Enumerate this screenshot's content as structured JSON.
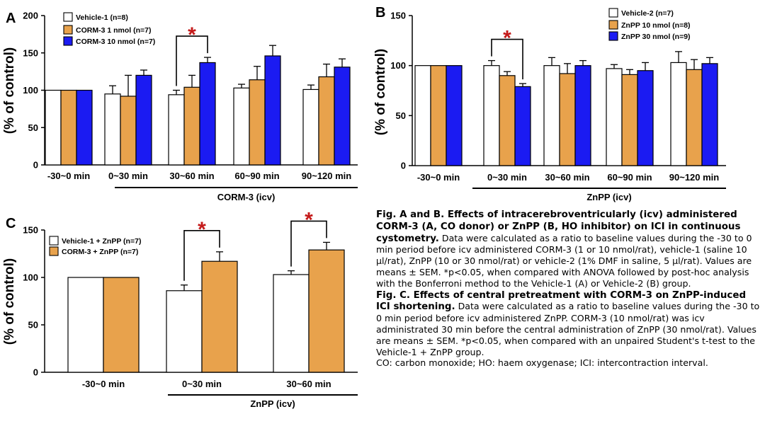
{
  "chart_data": [
    {
      "panel": "A",
      "type": "bar",
      "categories": [
        "-30~0 min",
        "0~30 min",
        "30~60 min",
        "60~90 min",
        "90~120 min"
      ],
      "group_label": "CORM-3 (icv)",
      "grouped_categories": [
        1,
        2,
        3,
        4
      ],
      "ylabel": "(% of control)",
      "ylim": [
        0,
        200
      ],
      "yticks": [
        0,
        50,
        100,
        150,
        200
      ],
      "series": [
        {
          "name": "Vehicle-1 (n=8)",
          "color": "#ffffff",
          "values": [
            100,
            95,
            94,
            103,
            101
          ],
          "errors": [
            0,
            11,
            6,
            5,
            6
          ]
        },
        {
          "name": "CORM-3 1 nmol (n=7)",
          "color": "#e8a24c",
          "values": [
            100,
            92,
            104,
            114,
            118
          ],
          "errors": [
            0,
            28,
            16,
            18,
            17
          ]
        },
        {
          "name": "CORM-3 10 nmol (n=7)",
          "color": "#1b1bf2",
          "values": [
            100,
            120,
            137,
            146,
            131
          ],
          "errors": [
            0,
            7,
            7,
            14,
            11
          ]
        }
      ],
      "significance": [
        {
          "category": 2,
          "from_series": 0,
          "to_series": 2,
          "label": "*"
        }
      ],
      "legend_position": "top"
    },
    {
      "panel": "B",
      "type": "bar",
      "categories": [
        "-30~0 min",
        "0~30 min",
        "30~60 min",
        "60~90 min",
        "90~120 min"
      ],
      "group_label": "ZnPP (icv)",
      "grouped_categories": [
        1,
        2,
        3,
        4
      ],
      "ylabel": "(% of control)",
      "ylim": [
        0,
        150
      ],
      "yticks": [
        0,
        50,
        100,
        150
      ],
      "series": [
        {
          "name": "Vehicle-2 (n=7)",
          "color": "#ffffff",
          "values": [
            100,
            100,
            100,
            97,
            103
          ],
          "errors": [
            0,
            5,
            8,
            4,
            11
          ]
        },
        {
          "name": "ZnPP 10 nmol (n=8)",
          "color": "#e8a24c",
          "values": [
            100,
            90,
            92,
            91,
            96
          ],
          "errors": [
            0,
            4,
            10,
            5,
            10
          ]
        },
        {
          "name": "ZnPP 30 nmol (n=9)",
          "color": "#1b1bf2",
          "values": [
            100,
            79,
            100,
            95,
            102
          ],
          "errors": [
            0,
            3,
            5,
            8,
            6
          ]
        }
      ],
      "significance": [
        {
          "category": 1,
          "from_series": 0,
          "to_series": 2,
          "label": "*"
        }
      ],
      "legend_position": "top"
    },
    {
      "panel": "C",
      "type": "bar",
      "categories": [
        "-30~0 min",
        "0~30 min",
        "30~60 min"
      ],
      "group_label": "ZnPP (icv)",
      "grouped_categories": [
        1,
        2
      ],
      "ylabel": "(% of control)",
      "ylim": [
        0,
        150
      ],
      "yticks": [
        0,
        50,
        100,
        150
      ],
      "series": [
        {
          "name": "Vehicle-1 + ZnPP (n=7)",
          "color": "#ffffff",
          "values": [
            100,
            86,
            103
          ],
          "errors": [
            0,
            6,
            4
          ]
        },
        {
          "name": "CORM-3 + ZnPP (n=7)",
          "color": "#e8a24c",
          "values": [
            100,
            117,
            129
          ],
          "errors": [
            0,
            10,
            8
          ]
        }
      ],
      "significance": [
        {
          "category": 1,
          "from_series": 0,
          "to_series": 1,
          "label": "*"
        },
        {
          "category": 2,
          "from_series": 0,
          "to_series": 1,
          "label": "*"
        }
      ],
      "legend_position": "top-left"
    }
  ],
  "caption": {
    "ab_title": "Fig. A and B. Effects of intracerebroventricularly (icv) administered CORM-3 (A, CO donor) or ZnPP (B, HO inhibitor) on ICI in continuous cystometry.",
    "ab_body": " Data were calculated as a ratio to baseline values during the -30 to 0 min period before icv administered CORM-3 (1 or 10 nmol/rat), vehicle-1 (saline 10 µl/rat), ZnPP (10 or 30 nmol/rat) or vehicle-2 (1% DMF in saline, 5 µl/rat). Values are means ± SEM. *p<0.05, when compared with ANOVA followed by post-hoc analysis with the Bonferroni method to the Vehicle-1 (A) or Vehicle-2 (B) group.",
    "c_title": "Fig. C. Effects of central pretreatment with CORM-3 on ZnPP-induced ICI shortening.",
    "c_body": " Data were calculated as a ratio to baseline values during the -30 to 0 min period before icv administered ZnPP. CORM-3 (10 nmol/rat) was icv administrated 30 min before the central administration of ZnPP (30 nmol/rat). Values are means ± SEM. *p<0.05, when compared with an unpaired Student's t-test to the Vehicle-1 + ZnPP group.",
    "abbrev": "CO: carbon monoxide; HO: haem oxygenase; ICI: intercontraction interval."
  }
}
